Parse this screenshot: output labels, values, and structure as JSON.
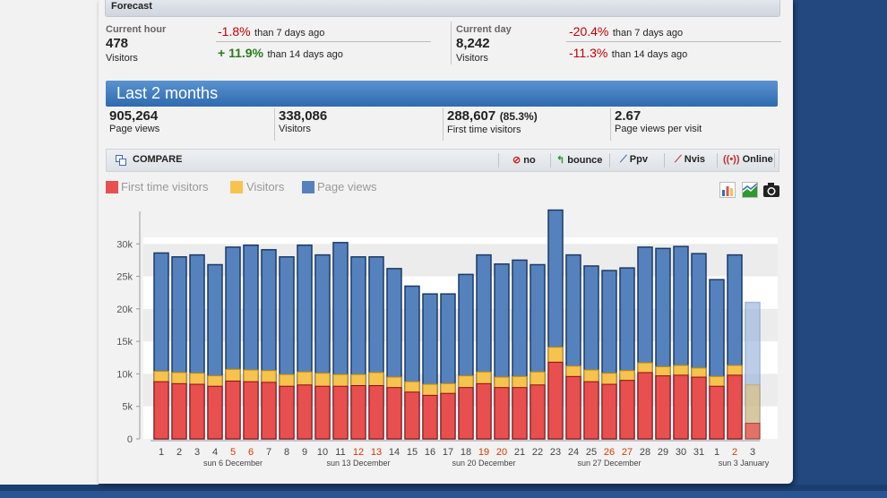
{
  "forecast": {
    "title": "Forecast",
    "hour": {
      "label": "Current hour",
      "value": "478",
      "unit": "Visitors",
      "comparisons": [
        {
          "pct": "-1.8%",
          "text": "than 7 days ago",
          "color": "#c00000"
        },
        {
          "pct": "+ 11.9%",
          "text": "than 14 days ago",
          "color": "#2c7a1c"
        }
      ]
    },
    "day": {
      "label": "Current day",
      "value": "8,242",
      "unit": "Visitors",
      "comparisons": [
        {
          "pct": "-20.4%",
          "text": "than 7 days ago",
          "color": "#c00000"
        },
        {
          "pct": "-11.3%",
          "text": "than 14 days ago",
          "color": "#c00000"
        }
      ]
    }
  },
  "period": {
    "title": "Last 2 months"
  },
  "stats": [
    {
      "value": "905,264",
      "extra": "",
      "label": "Page views"
    },
    {
      "value": "338,086",
      "extra": "",
      "label": "Visitors"
    },
    {
      "value": "288,607",
      "extra": "(85.3%)",
      "label": "First time visitors"
    },
    {
      "value": "2.67",
      "extra": "",
      "label": "Page views per visit"
    }
  ],
  "toolbar": {
    "compare_label": "COMPARE",
    "items": [
      {
        "icon": "no-icon",
        "label": "no"
      },
      {
        "icon": "bounce-icon",
        "label": "bounce"
      },
      {
        "icon": "ppv-icon",
        "label": "Ppv"
      },
      {
        "icon": "nvis-icon",
        "label": "Nvis"
      },
      {
        "icon": "online-icon",
        "label": "Online"
      }
    ]
  },
  "colors": {
    "first_time": "#e84f4f",
    "visitors": "#f7c34f",
    "page_views": "#5582bd",
    "weekend": "#d23a00"
  },
  "chart_data": {
    "type": "bar",
    "title": "",
    "ylim": [
      0,
      35000
    ],
    "yticks": [
      "0",
      "5k",
      "10k",
      "15k",
      "20k",
      "25k",
      "30k"
    ],
    "categories": [
      "1",
      "2",
      "3",
      "4",
      "5",
      "6",
      "7",
      "8",
      "9",
      "10",
      "11",
      "12",
      "13",
      "14",
      "15",
      "16",
      "17",
      "18",
      "19",
      "20",
      "21",
      "22",
      "23",
      "24",
      "25",
      "26",
      "27",
      "28",
      "29",
      "30",
      "31",
      "1",
      "2",
      "3"
    ],
    "weekend_categories": [
      4,
      5,
      11,
      12,
      18,
      19,
      25,
      26,
      32
    ],
    "week_labels": [
      "sun 6 December",
      "sun 13 December",
      "sun 20 December",
      "sun 27 December",
      "sun 3 January"
    ],
    "series": [
      {
        "name": "First time visitors",
        "values": [
          8800,
          8500,
          8400,
          8100,
          8900,
          8800,
          8700,
          8100,
          8300,
          8100,
          8100,
          8200,
          8200,
          7900,
          7200,
          6700,
          7000,
          7900,
          8500,
          7900,
          7900,
          8300,
          11800,
          9600,
          8800,
          8400,
          9000,
          10200,
          9700,
          9800,
          9500,
          8100,
          9800,
          2400
        ]
      },
      {
        "name": "Visitors",
        "values": [
          10400,
          10200,
          10100,
          9700,
          10700,
          10600,
          10500,
          9900,
          10300,
          10100,
          9900,
          9900,
          10200,
          9500,
          8800,
          8400,
          8500,
          9700,
          10300,
          9500,
          9600,
          10300,
          14100,
          11200,
          10600,
          10100,
          10500,
          11700,
          11100,
          11300,
          10900,
          9600,
          11300,
          8300
        ]
      },
      {
        "name": "Page views",
        "values": [
          28600,
          28000,
          28300,
          26800,
          29500,
          29800,
          29100,
          28000,
          29800,
          28300,
          30200,
          28000,
          28000,
          26200,
          23500,
          22300,
          22300,
          25300,
          28300,
          26900,
          27500,
          26800,
          35200,
          28300,
          26600,
          25900,
          26300,
          29500,
          29300,
          29600,
          28500,
          24500,
          28300,
          21000
        ]
      }
    ]
  }
}
